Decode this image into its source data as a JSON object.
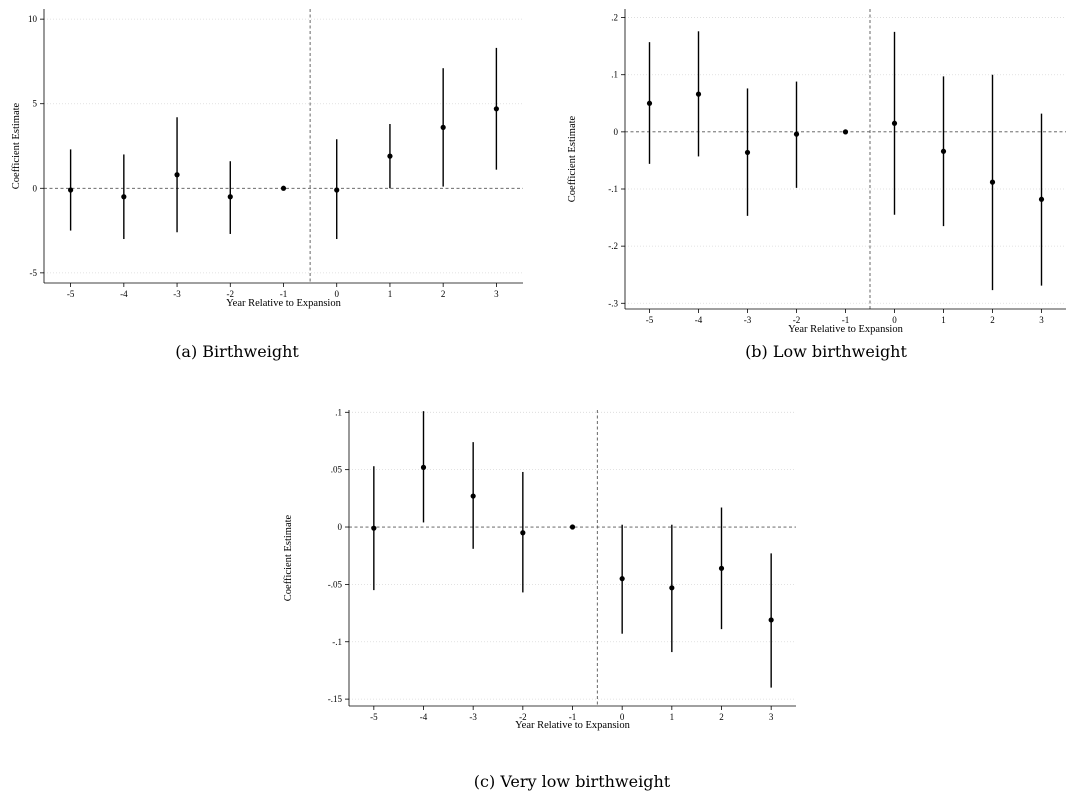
{
  "chart_data": [
    {
      "type": "scatter",
      "caption": "(a) Birthweight",
      "xlabel": "Year Relative to Expansion",
      "ylabel": "Coefficient Estimate",
      "x": [
        -5,
        -4,
        -3,
        -2,
        -1,
        0,
        1,
        2,
        3
      ],
      "x_tick_labels": [
        "-5",
        "-4",
        "-3",
        "-2",
        "-1",
        "0",
        "1",
        "2",
        "3"
      ],
      "estimates": [
        -0.1,
        -0.5,
        0.8,
        -0.5,
        0,
        -0.1,
        1.9,
        3.6,
        4.7
      ],
      "ci_lower": [
        -2.5,
        -3.0,
        -2.6,
        -2.7,
        0,
        -3.0,
        0.0,
        0.1,
        1.1
      ],
      "ci_upper": [
        2.3,
        2.0,
        4.2,
        1.6,
        0,
        2.9,
        3.8,
        7.1,
        8.3
      ],
      "y_ticks": [
        -5,
        0,
        5,
        10
      ],
      "y_tick_labels": [
        "-5",
        "0",
        "5",
        "10"
      ],
      "ylim": [
        -5.6,
        10.6
      ],
      "xlim": [
        -5.5,
        3.5
      ],
      "vline_x": -0.5,
      "hline_y": 0,
      "grid": true
    },
    {
      "type": "scatter",
      "caption": "(b) Low birthweight",
      "xlabel": "Year Relative to Expansion",
      "ylabel": "Coefficient Estimate",
      "x": [
        -5,
        -4,
        -3,
        -2,
        -1,
        0,
        1,
        2,
        3
      ],
      "x_tick_labels": [
        "-5",
        "-4",
        "-3",
        "-2",
        "-1",
        "0",
        "1",
        "2",
        "3"
      ],
      "estimates": [
        0.05,
        0.066,
        -0.036,
        -0.004,
        0,
        0.015,
        -0.034,
        -0.088,
        -0.118
      ],
      "ci_lower": [
        -0.056,
        -0.043,
        -0.147,
        -0.098,
        0,
        -0.145,
        -0.165,
        -0.277,
        -0.269
      ],
      "ci_upper": [
        0.157,
        0.176,
        0.076,
        0.088,
        0,
        0.175,
        0.097,
        0.1,
        0.032
      ],
      "y_ticks": [
        -0.3,
        -0.2,
        -0.1,
        0,
        0.1,
        0.2
      ],
      "y_tick_labels": [
        "-.3",
        "-.2",
        "-.1",
        "0",
        ".1",
        ".2"
      ],
      "ylim": [
        -0.31,
        0.215
      ],
      "xlim": [
        -5.5,
        3.5
      ],
      "vline_x": -0.5,
      "hline_y": 0,
      "grid": true
    },
    {
      "type": "scatter",
      "caption": "(c) Very low birthweight",
      "xlabel": "Year Relative to Expansion",
      "ylabel": "Coefficient Estimate",
      "x": [
        -5,
        -4,
        -3,
        -2,
        -1,
        0,
        1,
        2,
        3
      ],
      "x_tick_labels": [
        "-5",
        "-4",
        "-3",
        "-2",
        "-1",
        "0",
        "1",
        "2",
        "3"
      ],
      "estimates": [
        -0.001,
        0.052,
        0.027,
        -0.005,
        0,
        -0.045,
        -0.053,
        -0.036,
        -0.081
      ],
      "ci_lower": [
        -0.055,
        0.004,
        -0.019,
        -0.057,
        0,
        -0.093,
        -0.109,
        -0.089,
        -0.14
      ],
      "ci_upper": [
        0.053,
        0.101,
        0.074,
        0.048,
        0,
        0.002,
        0.002,
        0.017,
        -0.023
      ],
      "y_ticks": [
        -0.15,
        -0.1,
        -0.05,
        0,
        0.05,
        0.1
      ],
      "y_tick_labels": [
        "-.15",
        "-.1",
        "-.05",
        "0",
        ".05",
        ".1"
      ],
      "ylim": [
        -0.156,
        0.102
      ],
      "xlim": [
        -5.5,
        3.5
      ],
      "vline_x": -0.5,
      "hline_y": 0,
      "grid": true
    }
  ]
}
